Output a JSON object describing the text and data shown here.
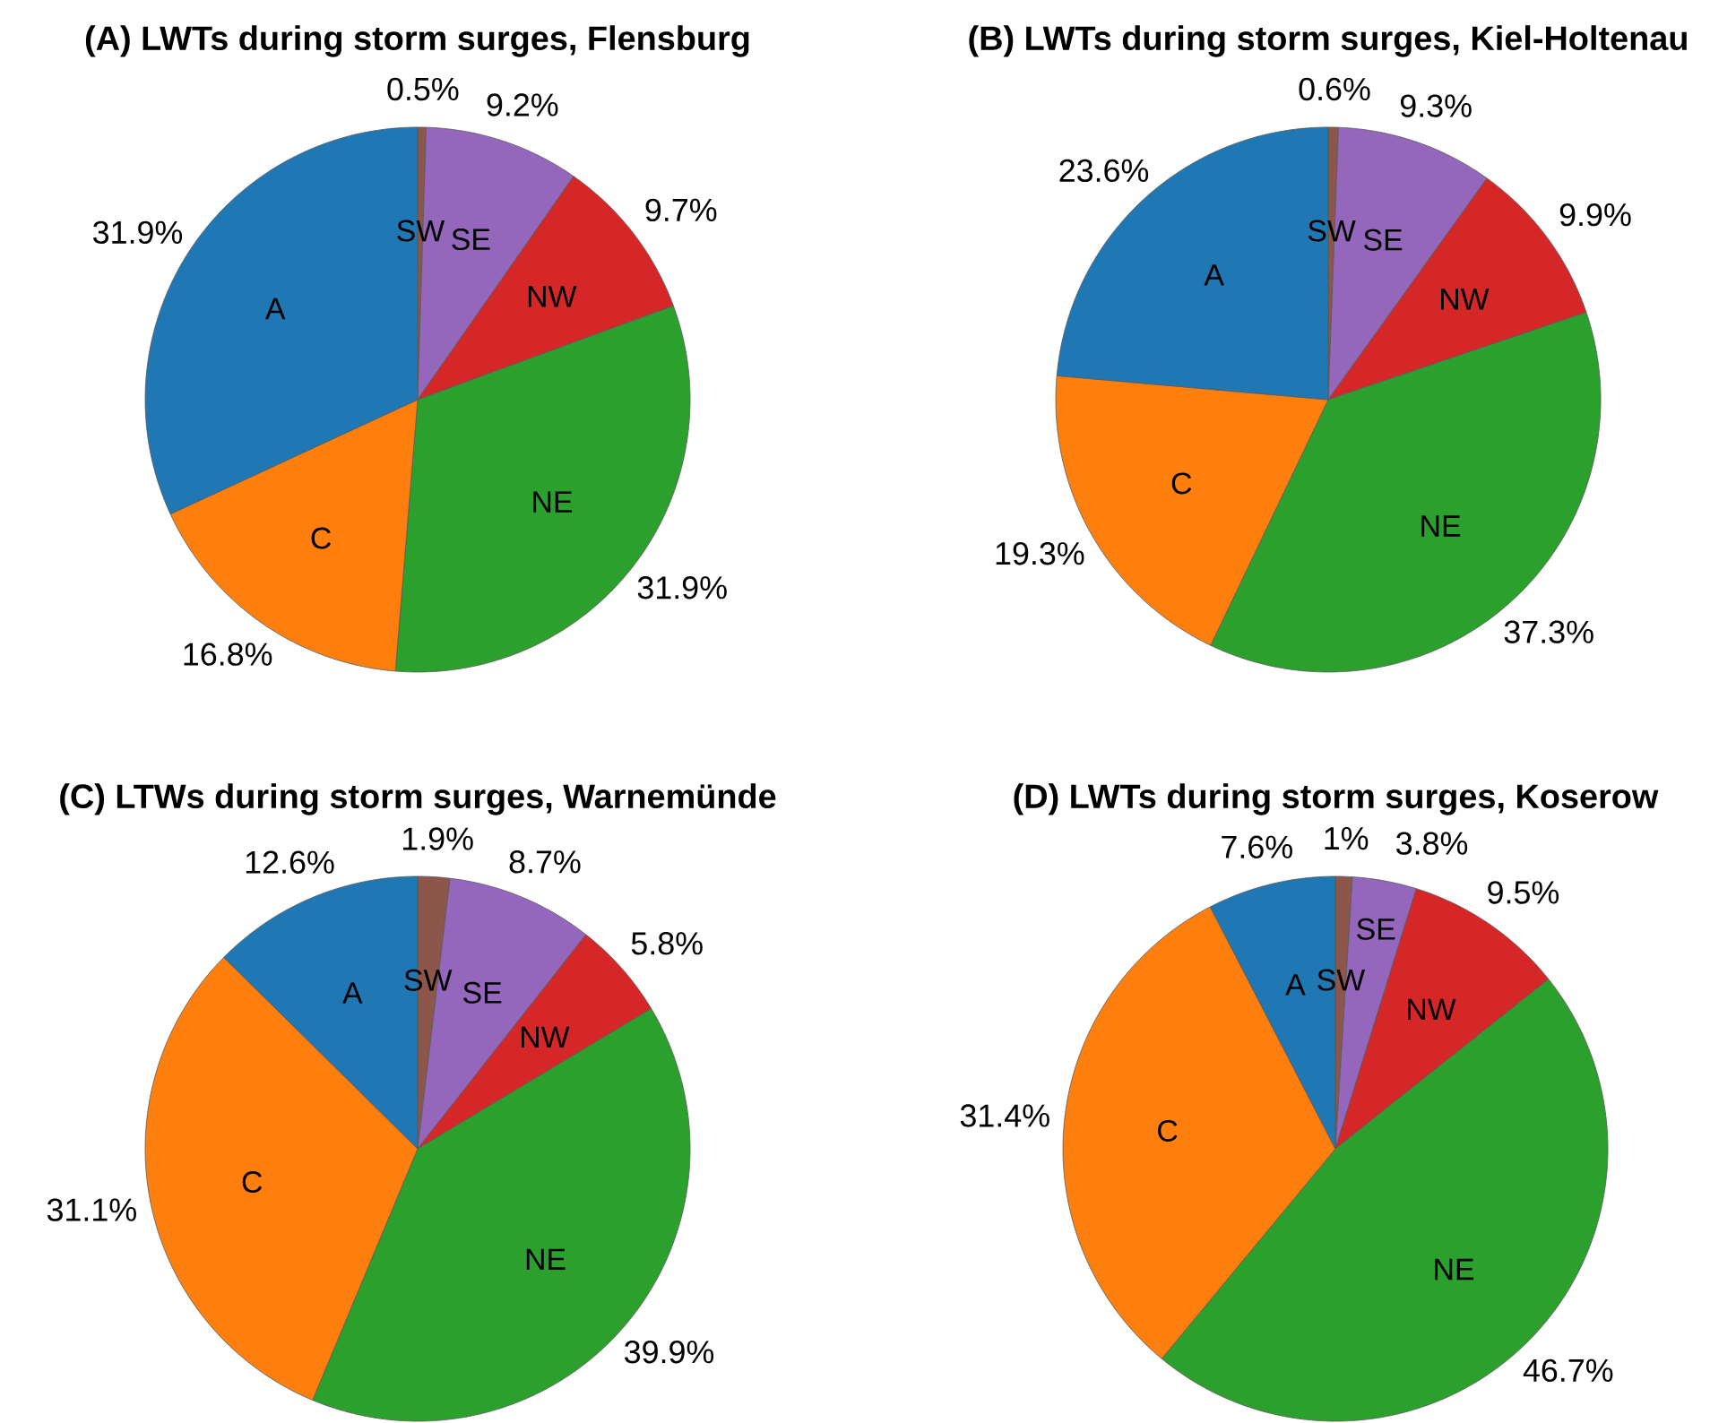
{
  "chart_data": [
    {
      "type": "pie",
      "title": "(A) LWTs during storm surges, Flensburg",
      "categories": [
        "SW",
        "SE",
        "NW",
        "NE",
        "C",
        "A"
      ],
      "values": [
        0.5,
        9.2,
        9.7,
        31.9,
        16.8,
        31.9
      ],
      "colors": [
        "#8c564b",
        "#9467bd",
        "#d62728",
        "#2ca02c",
        "#ff7f0e",
        "#1f77b4"
      ],
      "value_labels": [
        "0.5%",
        "9.2%",
        "9.7%",
        "31.9%",
        "16.8%",
        "31.9%"
      ]
    },
    {
      "type": "pie",
      "title": "(B) LWTs during storm surges, Kiel-Holtenau",
      "categories": [
        "SW",
        "SE",
        "NW",
        "NE",
        "C",
        "A"
      ],
      "values": [
        0.6,
        9.3,
        9.9,
        37.3,
        19.3,
        23.6
      ],
      "colors": [
        "#8c564b",
        "#9467bd",
        "#d62728",
        "#2ca02c",
        "#ff7f0e",
        "#1f77b4"
      ],
      "value_labels": [
        "0.6%",
        "9.3%",
        "9.9%",
        "37.3%",
        "19.3%",
        "23.6%"
      ]
    },
    {
      "type": "pie",
      "title": "(C) LTWs during storm surges, Warnemünde",
      "categories": [
        "SW",
        "SE",
        "NW",
        "NE",
        "C",
        "A"
      ],
      "values": [
        1.9,
        8.7,
        5.8,
        39.9,
        31.1,
        12.6
      ],
      "colors": [
        "#8c564b",
        "#9467bd",
        "#d62728",
        "#2ca02c",
        "#ff7f0e",
        "#1f77b4"
      ],
      "value_labels": [
        "1.9%",
        "8.7%",
        "5.8%",
        "39.9%",
        "31.1%",
        "12.6%"
      ]
    },
    {
      "type": "pie",
      "title": "(D) LWTs during storm surges, Koserow",
      "categories": [
        "SW",
        "SE",
        "NW",
        "NE",
        "C",
        "A"
      ],
      "values": [
        1,
        3.8,
        9.5,
        46.7,
        31.4,
        7.6
      ],
      "colors": [
        "#8c564b",
        "#9467bd",
        "#d62728",
        "#2ca02c",
        "#ff7f0e",
        "#1f77b4"
      ],
      "value_labels": [
        "1%",
        "3.8%",
        "9.5%",
        "46.7%",
        "31.4%",
        "7.6%"
      ]
    }
  ]
}
